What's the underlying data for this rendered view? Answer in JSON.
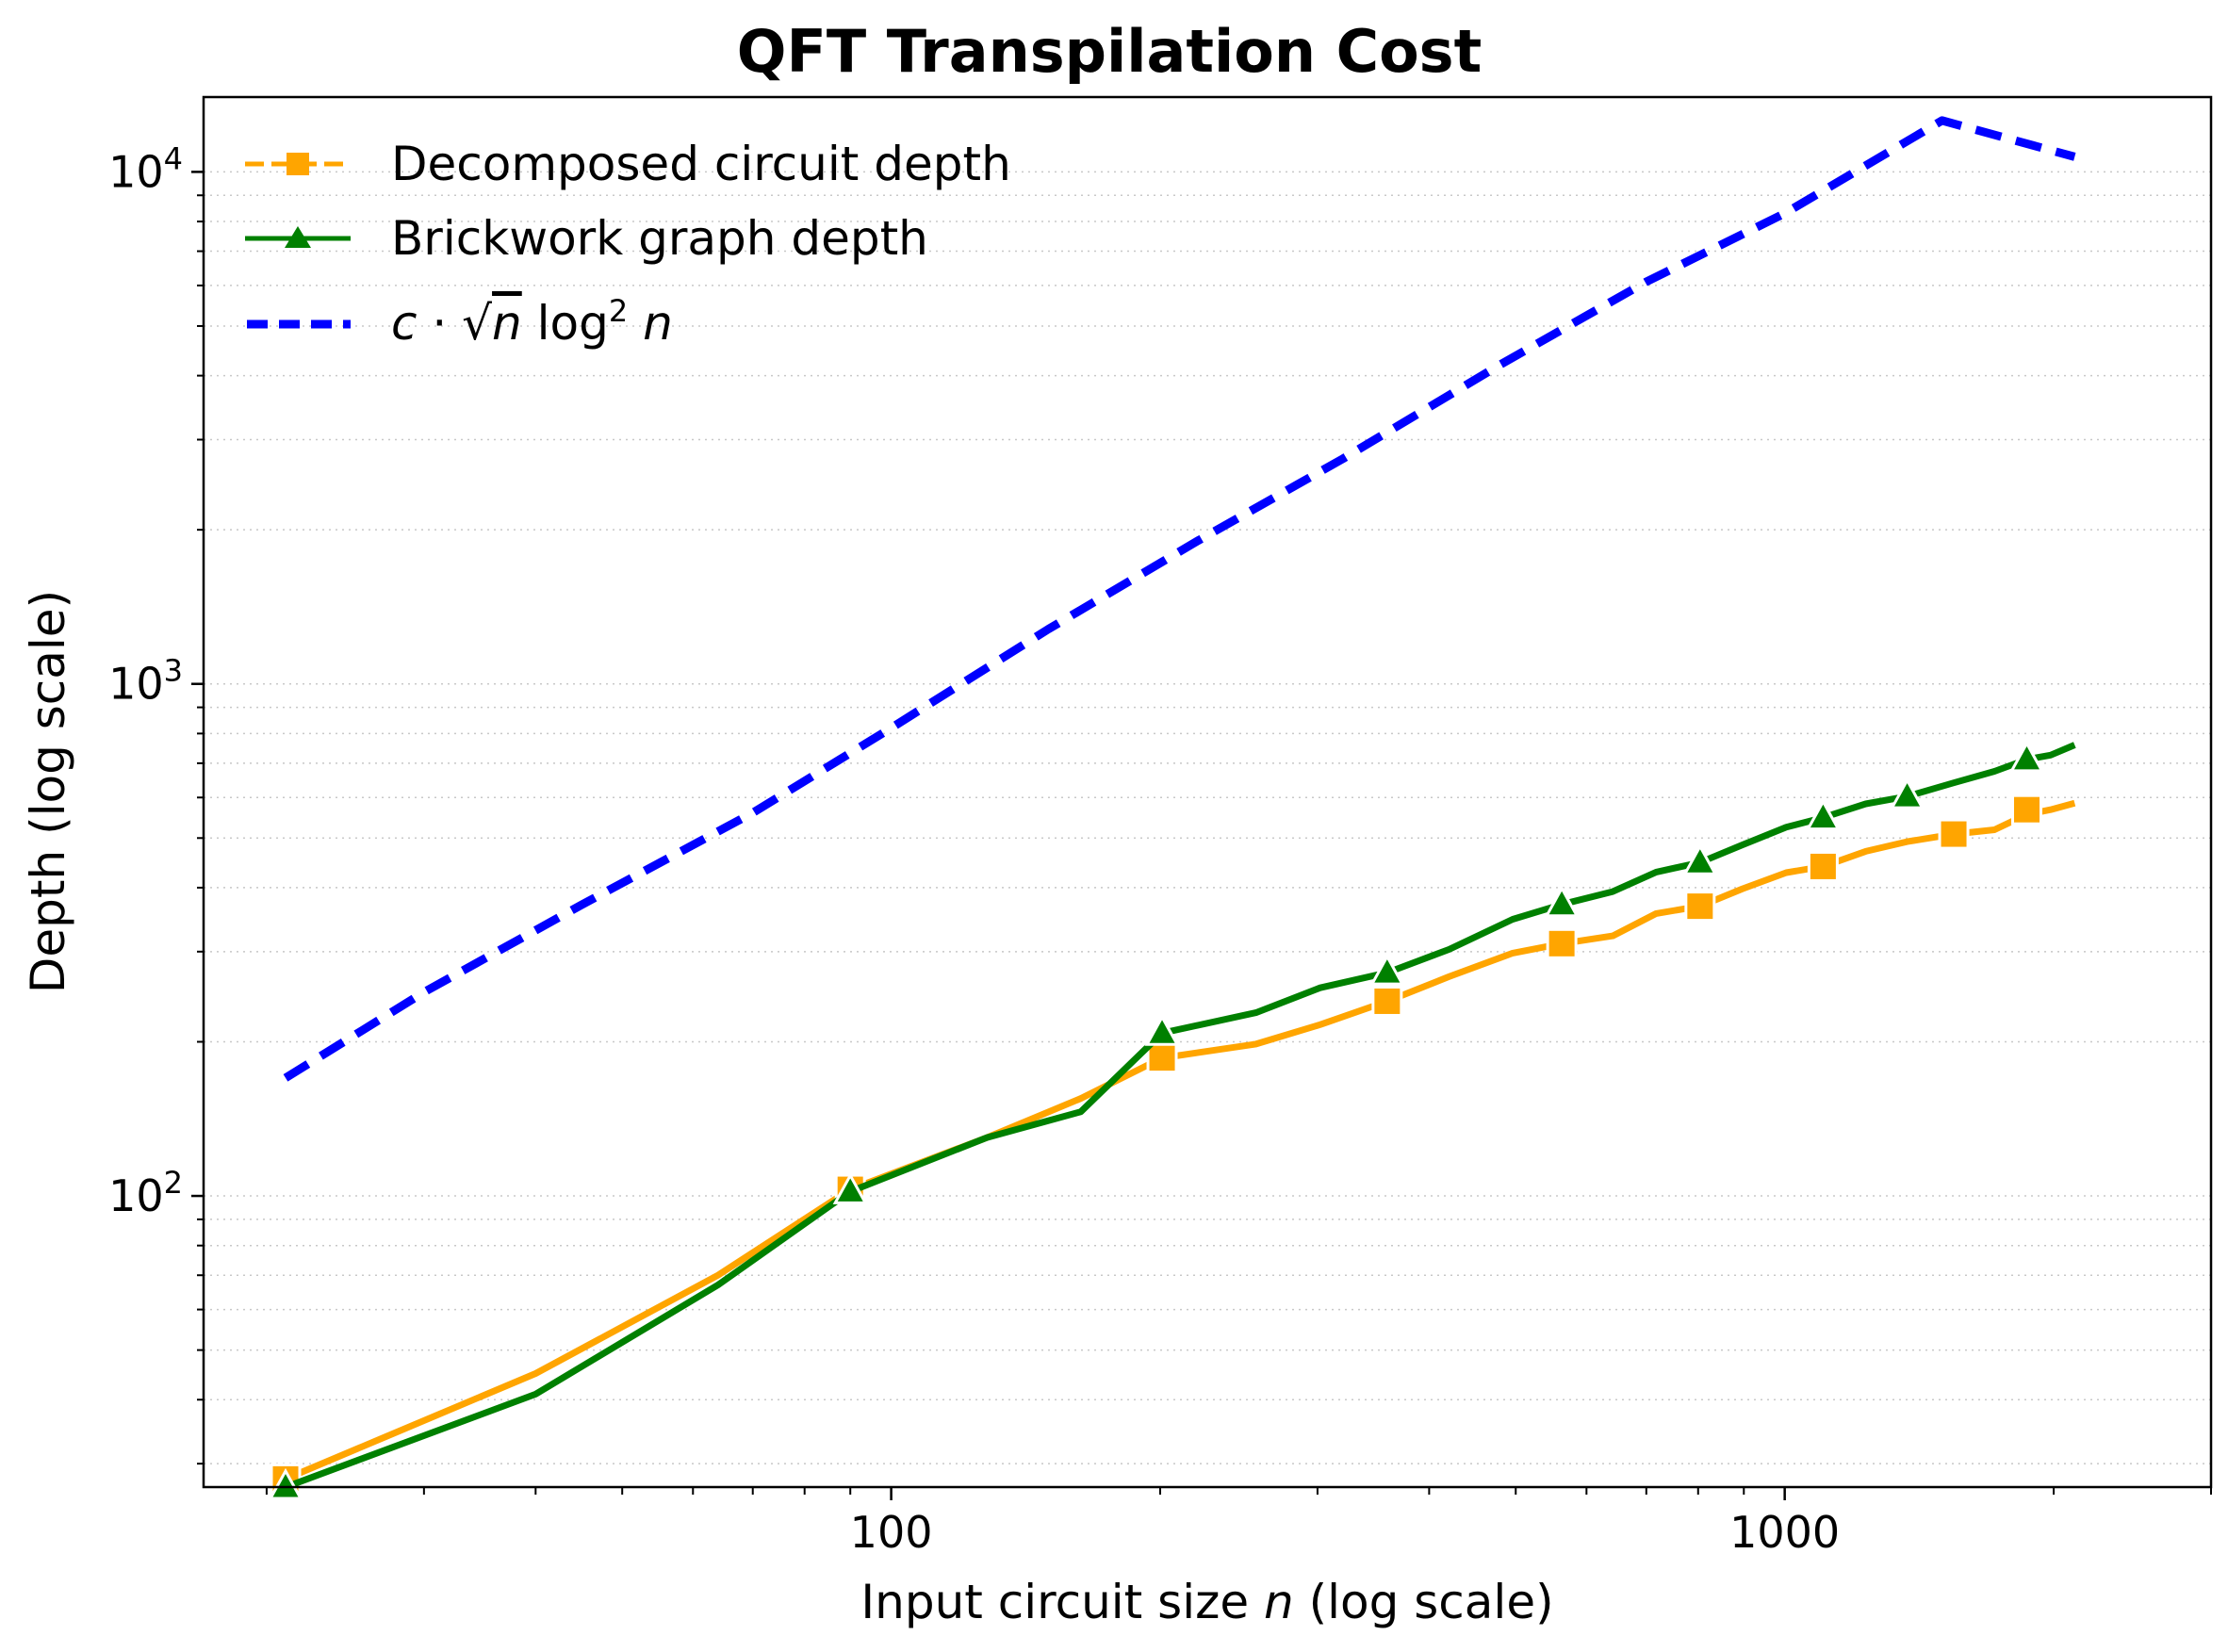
{
  "chart_data": {
    "type": "line",
    "title": "QFT Transpilation Cost",
    "xlabel": "Input circuit size n (log scale)",
    "ylabel": "Depth (log scale)",
    "xscale": "log",
    "yscale": "log",
    "xlim": [
      17,
      3000
    ],
    "ylim": [
      27,
      14000
    ],
    "grid": "y-minor-dotted",
    "legend_position": "top-left",
    "x_ticks": [
      {
        "value": 100,
        "label": "100"
      },
      {
        "value": 1000,
        "label": "1000"
      }
    ],
    "y_ticks": [
      {
        "value": 100,
        "base": "10",
        "exp": "2"
      },
      {
        "value": 1000,
        "base": "10",
        "exp": "3"
      },
      {
        "value": 10000,
        "base": "10",
        "exp": "4"
      }
    ],
    "series": [
      {
        "name": "Decomposed circuit depth",
        "color": "#FFA500",
        "style": "solid",
        "marker": "square",
        "x": [
          21,
          40,
          64,
          90,
          128,
          163,
          201,
          256,
          302,
          359,
          421,
          496,
          563,
          642,
          718,
          804,
          897,
          1004,
          1104,
          1232,
          1371,
          1546,
          1717,
          1866,
          1984,
          2111
        ],
        "y": [
          28,
          45,
          70,
          103,
          130,
          155,
          186,
          198,
          216,
          240,
          268,
          298,
          311,
          322,
          356,
          368,
          398,
          428,
          440,
          471,
          492,
          509,
          519,
          556,
          568,
          585
        ],
        "marker_x": [
          21,
          90,
          201,
          359,
          563,
          804,
          1104,
          1546,
          1866
        ],
        "marker_y": [
          28,
          103,
          186,
          240,
          311,
          368,
          440,
          509,
          568
        ]
      },
      {
        "name": "Brickwork graph depth",
        "color": "#008000",
        "style": "solid",
        "marker": "triangle",
        "x": [
          21,
          40,
          64,
          90,
          128,
          163,
          201,
          256,
          302,
          359,
          421,
          496,
          563,
          642,
          718,
          804,
          897,
          1004,
          1104,
          1232,
          1371,
          1546,
          1717,
          1866,
          1984,
          2111
        ],
        "y": [
          27,
          41,
          67,
          102,
          130,
          146,
          208,
          228,
          255,
          273,
          303,
          347,
          371,
          393,
          429,
          448,
          485,
          525,
          548,
          583,
          603,
          641,
          675,
          712,
          726,
          760
        ],
        "marker_x": [
          21,
          90,
          201,
          359,
          563,
          804,
          1104,
          1371,
          1866
        ],
        "marker_y": [
          27,
          102,
          208,
          273,
          371,
          448,
          548,
          603,
          712
        ]
      },
      {
        "name": "c·√n log² n",
        "color": "#0000FF",
        "style": "dashed",
        "marker": "none",
        "x": [
          21,
          30,
          45,
          70,
          100,
          150,
          220,
          320,
          480,
          700,
          1000,
          1500,
          2111
        ],
        "y": [
          170,
          250,
          370,
          560,
          820,
          1280,
          1900,
          2750,
          4200,
          6100,
          8300,
          12600,
          10700
        ]
      }
    ],
    "legend": {
      "entries": [
        {
          "label": "Decomposed circuit depth"
        },
        {
          "label": "Brickwork graph depth"
        },
        {
          "label_prefix": "c·√",
          "label_n": "n",
          "label_log": " log",
          "label_sup": "2",
          "label_suffix": "n"
        }
      ]
    }
  }
}
